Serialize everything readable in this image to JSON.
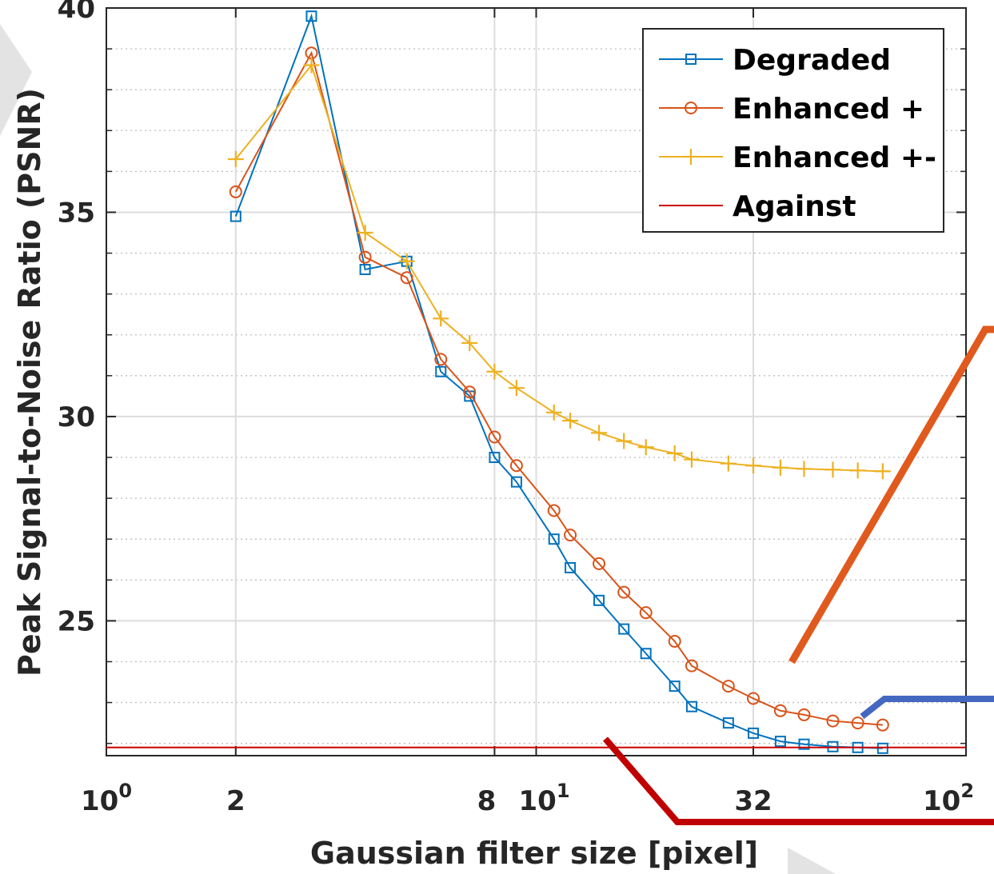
{
  "chart_data": {
    "type": "line",
    "xscale": "log",
    "xlim": [
      1,
      100
    ],
    "ylim": [
      21.7,
      40
    ],
    "xlabel": "Gaussian filter size [pixel]",
    "ylabel": "Peak Signal-to-Noise Ratio (PSNR)",
    "x_ticks": [
      {
        "value": 1,
        "base": "10",
        "exp": "0"
      },
      {
        "value": 2,
        "base": "2",
        "exp": ""
      },
      {
        "value": 8,
        "base": "8",
        "exp": ""
      },
      {
        "value": 10,
        "base": "10",
        "exp": "1"
      },
      {
        "value": 32,
        "base": "32",
        "exp": ""
      },
      {
        "value": 100,
        "base": "10",
        "exp": "2"
      }
    ],
    "y_ticks": [
      25,
      30,
      35,
      40
    ],
    "grid": true,
    "legend_position": "top-right",
    "series": [
      {
        "name": "Degraded",
        "color": "#0072BD",
        "marker": "square",
        "x": [
          2,
          3,
          4,
          5,
          6,
          7,
          8,
          9,
          11,
          12,
          14,
          16,
          18,
          21,
          23,
          28,
          32,
          37,
          42,
          49,
          56,
          64
        ],
        "y": [
          34.9,
          39.8,
          33.6,
          33.8,
          31.1,
          30.5,
          29.0,
          28.4,
          27.0,
          26.3,
          25.5,
          24.8,
          24.2,
          23.4,
          22.9,
          22.5,
          22.25,
          22.05,
          21.98,
          21.92,
          21.9,
          21.88
        ]
      },
      {
        "name": "Enhanced +",
        "color": "#D95319",
        "marker": "circle",
        "x": [
          2,
          3,
          4,
          5,
          6,
          7,
          8,
          9,
          11,
          12,
          14,
          16,
          18,
          21,
          23,
          28,
          32,
          37,
          42,
          49,
          56,
          64
        ],
        "y": [
          35.5,
          38.9,
          33.9,
          33.4,
          31.4,
          30.6,
          29.5,
          28.8,
          27.7,
          27.1,
          26.4,
          25.7,
          25.2,
          24.5,
          23.9,
          23.4,
          23.1,
          22.8,
          22.7,
          22.55,
          22.5,
          22.45
        ]
      },
      {
        "name": "Enhanced +-",
        "color": "#EDB120",
        "marker": "plus",
        "x": [
          2,
          3,
          4,
          5,
          6,
          7,
          8,
          9,
          11,
          12,
          14,
          16,
          18,
          21,
          23,
          28,
          32,
          37,
          42,
          49,
          56,
          64
        ],
        "y": [
          36.3,
          38.6,
          34.5,
          33.8,
          32.4,
          31.8,
          31.1,
          30.7,
          30.1,
          29.9,
          29.6,
          29.4,
          29.25,
          29.1,
          28.95,
          28.85,
          28.8,
          28.75,
          28.72,
          28.7,
          28.68,
          28.66
        ]
      },
      {
        "name": "Against",
        "color": "#CC0000",
        "marker": "none",
        "x": [
          1,
          100
        ],
        "y": [
          21.9,
          21.9
        ]
      }
    ]
  }
}
